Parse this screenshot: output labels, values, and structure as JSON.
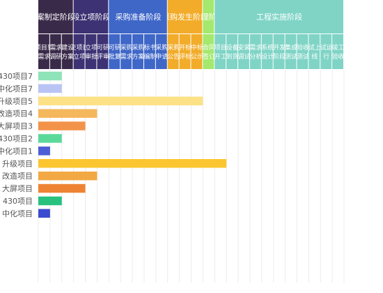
{
  "chart_data": {
    "type": "bar",
    "title": "",
    "phases": [
      {
        "name": "案制定阶段",
        "color": "#3a2a4a",
        "tasks": [
          {
            "label": "项目到需求",
            "color": "#3a2a4a"
          },
          {
            "label": "需求调研",
            "color": "#3a2a4a"
          },
          {
            "label": "建设方案",
            "color": "#3a2a4a"
          }
        ]
      },
      {
        "name": "段立项阶段",
        "color": "#3d3273",
        "tasks": [
          {
            "label": "交项目立项",
            "color": "#3d3273"
          },
          {
            "label": "立项审批",
            "color": "#3d3273"
          },
          {
            "label": "可研评审",
            "color": "#3d3273"
          }
        ]
      },
      {
        "name": "采购准备阶段",
        "color": "#3f67c8",
        "tasks": [
          {
            "label": "可研批复",
            "color": "#3f67c8"
          },
          {
            "label": "采购需求",
            "color": "#3f67c8"
          },
          {
            "label": "采购方案",
            "color": "#3f67c8"
          },
          {
            "label": "标书编制",
            "color": "#3f67c8"
          },
          {
            "label": "采购申请",
            "color": "#3f67c8"
          }
        ]
      },
      {
        "name": "采购发生阶段",
        "color": "#f2ac2a",
        "tasks": [
          {
            "label": "采购公告",
            "color": "#f2ac2a"
          },
          {
            "label": "开标评标",
            "color": "#f2ac2a"
          },
          {
            "label": "中标公示",
            "color": "#f2ac2a"
          }
        ]
      },
      {
        "name": "管理阶段",
        "color": "#a4e86e",
        "tasks": [
          {
            "label": "合同签订",
            "color": "#a4e86e"
          }
        ]
      },
      {
        "name": "工程实施阶段",
        "color": "#7fd4c6",
        "tasks": [
          {
            "label": "项目开工",
            "color": "#7fd4c6"
          },
          {
            "label": "设备到货",
            "color": "#7fd4c6"
          },
          {
            "label": "安装调试",
            "color": "#7fd4c6"
          },
          {
            "label": "需求分析",
            "color": "#7fd4c6"
          },
          {
            "label": "系统设计",
            "color": "#7fd4c6"
          },
          {
            "label": "开发阶段",
            "color": "#7fd4c6"
          },
          {
            "label": "集成测试",
            "color": "#7fd4c6"
          },
          {
            "label": "验收测试",
            "color": "#7fd4c6"
          },
          {
            "label": "试上线",
            "color": "#7fd4c6"
          },
          {
            "label": "试运行",
            "color": "#7fd4c6"
          },
          {
            "label": "竣工验收",
            "color": "#7fd4c6"
          }
        ]
      }
    ],
    "rows": [
      {
        "label": "430项目7",
        "value": 2,
        "color": "#8ee4b8"
      },
      {
        "label": "中化项目7",
        "value": 2,
        "color": "#b9c4f5"
      },
      {
        "label": "升级项目5",
        "value": 14,
        "color": "#fde187"
      },
      {
        "label": "改造项目4",
        "value": 5,
        "color": "#f5b75c"
      },
      {
        "label": "大屏项目3",
        "value": 4,
        "color": "#f39349"
      },
      {
        "label": "430项目2",
        "value": 2,
        "color": "#5bd99b"
      },
      {
        "label": "中化项目1",
        "value": 1,
        "color": "#4d5dd6"
      },
      {
        "label": "升级项目",
        "value": 16,
        "color": "#fbc630"
      },
      {
        "label": "改造项目",
        "value": 5,
        "color": "#f2a944"
      },
      {
        "label": "大屏项目",
        "value": 4,
        "color": "#ee8433"
      },
      {
        "label": "430项目",
        "value": 2,
        "color": "#28c27e"
      },
      {
        "label": "中化项目",
        "value": 1,
        "color": "#3b4bd0"
      }
    ]
  }
}
